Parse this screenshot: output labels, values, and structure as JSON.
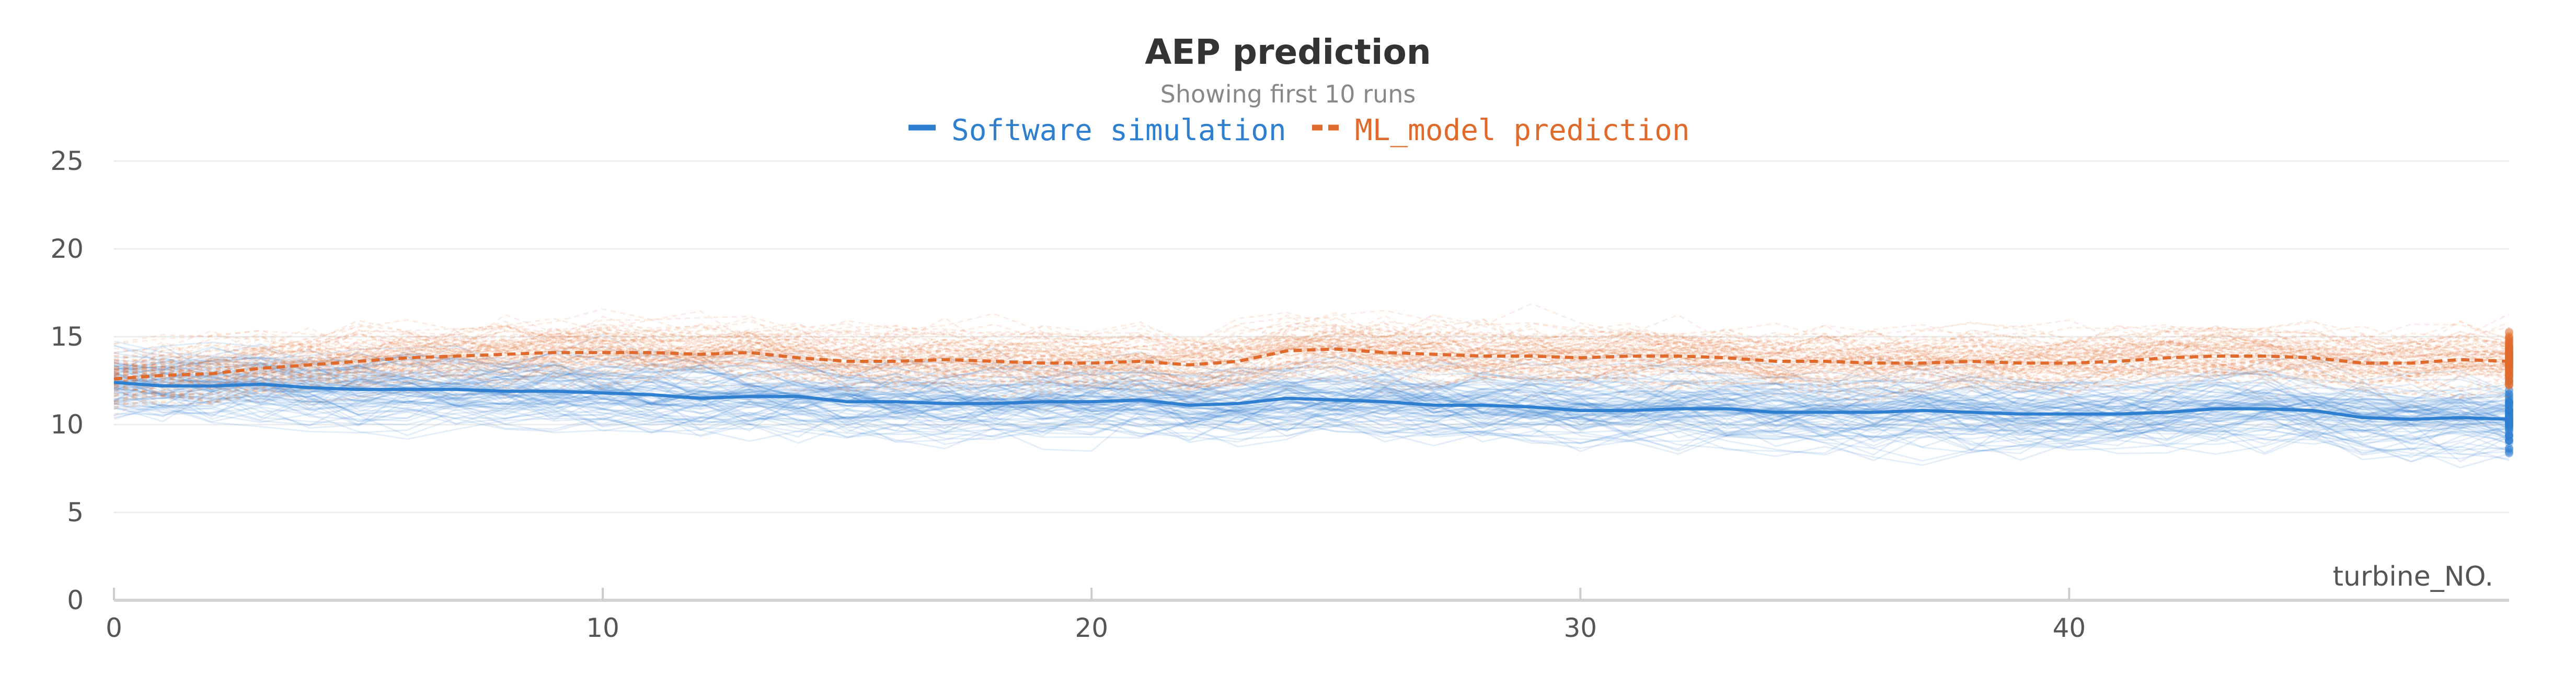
{
  "chart_data": {
    "type": "line",
    "title": "AEP prediction",
    "subtitle": "Showing first 10 runs",
    "xlabel": "turbine_NO.",
    "ylabel": "",
    "xlim": [
      0,
      49
    ],
    "ylim": [
      0,
      25
    ],
    "x_ticks": [
      0,
      10,
      20,
      30,
      40
    ],
    "y_ticks": [
      0,
      5,
      10,
      15,
      20,
      25
    ],
    "grid": true,
    "legend_position": "top-center",
    "series": [
      {
        "name": "Software simulation",
        "color": "#2f7fd0",
        "line_style": "solid",
        "x": [
          0,
          1,
          2,
          3,
          4,
          5,
          6,
          7,
          8,
          9,
          10,
          11,
          12,
          13,
          14,
          15,
          16,
          17,
          18,
          19,
          20,
          21,
          22,
          23,
          24,
          25,
          26,
          27,
          28,
          29,
          30,
          31,
          32,
          33,
          34,
          35,
          36,
          37,
          38,
          39,
          40,
          41,
          42,
          43,
          44,
          45,
          46,
          47,
          48,
          49
        ],
        "values": [
          12.4,
          12.2,
          12.2,
          12.3,
          12.1,
          12.0,
          12.0,
          12.0,
          11.9,
          11.9,
          11.8,
          11.7,
          11.5,
          11.6,
          11.6,
          11.3,
          11.3,
          11.2,
          11.2,
          11.3,
          11.3,
          11.4,
          11.1,
          11.2,
          11.5,
          11.4,
          11.3,
          11.1,
          11.1,
          11.0,
          10.8,
          10.8,
          10.9,
          10.9,
          10.7,
          10.7,
          10.7,
          10.8,
          10.7,
          10.6,
          10.6,
          10.6,
          10.7,
          10.9,
          10.9,
          10.8,
          10.4,
          10.3,
          10.4,
          10.3
        ]
      },
      {
        "name": "ML_model prediction",
        "color": "#e06a2c",
        "line_style": "dashed",
        "x": [
          0,
          1,
          2,
          3,
          4,
          5,
          6,
          7,
          8,
          9,
          10,
          11,
          12,
          13,
          14,
          15,
          16,
          17,
          18,
          19,
          20,
          21,
          22,
          23,
          24,
          25,
          26,
          27,
          28,
          29,
          30,
          31,
          32,
          33,
          34,
          35,
          36,
          37,
          38,
          39,
          40,
          41,
          42,
          43,
          44,
          45,
          46,
          47,
          48,
          49
        ],
        "values": [
          12.6,
          12.8,
          12.9,
          13.2,
          13.4,
          13.6,
          13.8,
          13.9,
          14.0,
          14.1,
          14.1,
          14.1,
          14.0,
          14.1,
          13.8,
          13.6,
          13.6,
          13.7,
          13.6,
          13.5,
          13.5,
          13.6,
          13.4,
          13.6,
          14.2,
          14.3,
          14.1,
          14.0,
          13.9,
          13.9,
          13.8,
          13.9,
          13.9,
          13.8,
          13.6,
          13.6,
          13.5,
          13.5,
          13.6,
          13.5,
          13.5,
          13.6,
          13.8,
          13.9,
          13.9,
          13.8,
          13.5,
          13.5,
          13.7,
          13.6
        ]
      }
    ]
  }
}
